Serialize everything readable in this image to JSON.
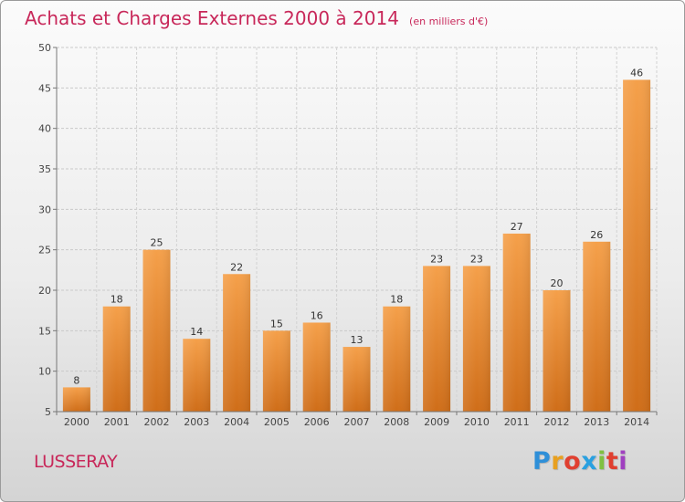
{
  "header": {
    "title": "Achats et Charges Externes 2000 à 2014",
    "subtitle": "(en milliers d'€)"
  },
  "footer": {
    "commune": "LUSSERAY",
    "brand_letters": [
      "P",
      "r",
      "o",
      "x",
      "i",
      "t",
      "i"
    ],
    "brand_colors": [
      "#2e8fd8",
      "#e8a020",
      "#e04030",
      "#2aa0e0",
      "#80c040",
      "#e04030",
      "#a040c0"
    ]
  },
  "chart_data": {
    "type": "bar",
    "categories": [
      "2000",
      "2001",
      "2002",
      "2003",
      "2004",
      "2005",
      "2006",
      "2007",
      "2008",
      "2009",
      "2010",
      "2011",
      "2012",
      "2013",
      "2014"
    ],
    "values": [
      8,
      18,
      25,
      14,
      22,
      15,
      16,
      13,
      18,
      23,
      23,
      27,
      20,
      26,
      46
    ],
    "ylim": [
      5,
      50
    ],
    "yticks": [
      5,
      10,
      15,
      20,
      25,
      30,
      35,
      40,
      45,
      50
    ],
    "grid": true,
    "bar_color_top": "#f5a04a",
    "bar_color_bottom": "#cf6d18",
    "label_color": "#333333"
  }
}
